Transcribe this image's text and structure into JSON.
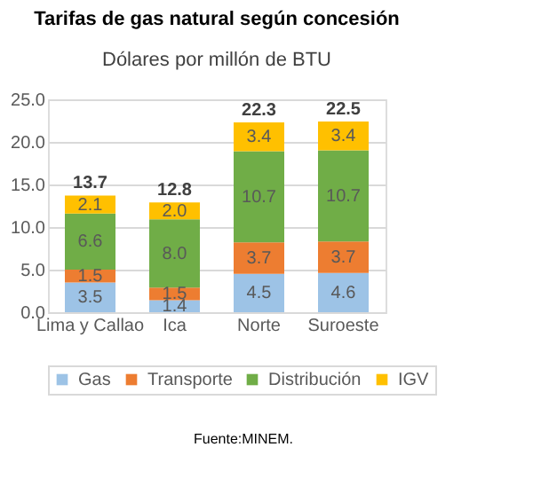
{
  "chart_data": {
    "type": "bar",
    "stacked": true,
    "title": "Tarifas de gas natural según concesión",
    "subtitle": "Dólares por millón de BTU",
    "categories": [
      "Lima y Callao",
      "Ica",
      "Norte",
      "Suroeste"
    ],
    "series": [
      {
        "name": "Gas",
        "color": "#9dc3e6",
        "values": [
          3.5,
          1.4,
          4.5,
          4.6
        ]
      },
      {
        "name": "Transporte",
        "color": "#ed7d31",
        "values": [
          1.5,
          1.5,
          3.7,
          3.7
        ]
      },
      {
        "name": "Distribución",
        "color": "#70ad47",
        "values": [
          6.6,
          8.0,
          10.7,
          10.7
        ]
      },
      {
        "name": "IGV",
        "color": "#ffc000",
        "values": [
          2.1,
          2.0,
          3.4,
          3.4
        ]
      }
    ],
    "totals": [
      "13.7",
      "12.8",
      "22.3",
      "22.5"
    ],
    "value_labels": [
      [
        "3.5",
        "1.4",
        "4.5",
        "4.6"
      ],
      [
        "1.5",
        "1.5",
        "3.7",
        "3.7"
      ],
      [
        "6.6",
        "8.0",
        "10.7",
        "10.7"
      ],
      [
        "2.1",
        "2.0",
        "3.4",
        "3.4"
      ]
    ],
    "ylim": [
      0,
      25
    ],
    "yticks": [
      {
        "value": 0,
        "label": "0.0"
      },
      {
        "value": 5,
        "label": "5.0"
      },
      {
        "value": 10,
        "label": "10.0"
      },
      {
        "value": 15,
        "label": "15.0"
      },
      {
        "value": 20,
        "label": "20.0"
      },
      {
        "value": 25,
        "label": "25.0"
      }
    ],
    "grid": "y",
    "legend": "bottom",
    "annotations": [
      "Fuente:MINEM."
    ]
  }
}
